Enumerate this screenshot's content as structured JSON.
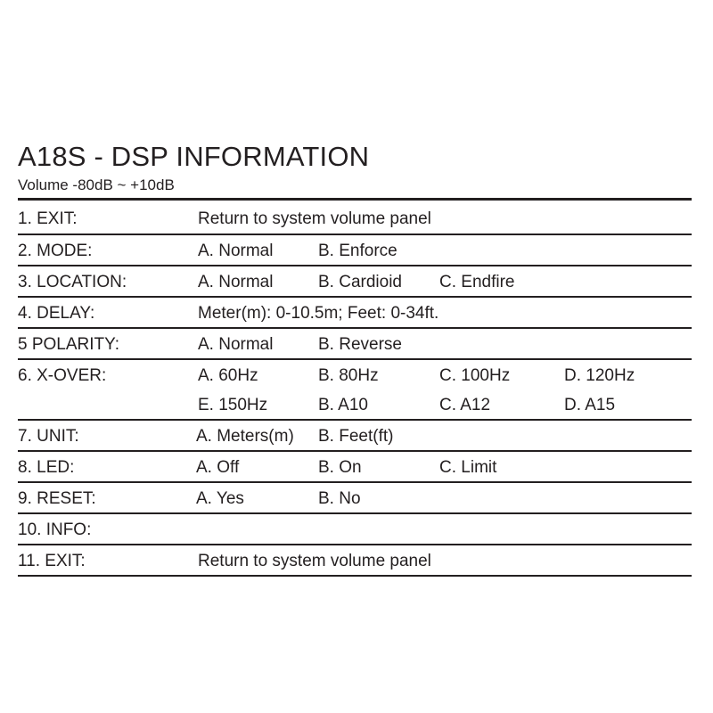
{
  "title": "A18S - DSP INFORMATION",
  "subtitle": "Volume  -80dB ~ +10dB",
  "rows": [
    {
      "label": "1.  EXIT:",
      "lines": [
        [
          "Return to system volume panel"
        ]
      ]
    },
    {
      "label": "2.  MODE:",
      "lines": [
        [
          "A. Normal",
          "B. Enforce"
        ]
      ]
    },
    {
      "label": "3. LOCATION:",
      "lines": [
        [
          "A. Normal",
          "B. Cardioid",
          "C. Endfire"
        ]
      ]
    },
    {
      "label": "4. DELAY:",
      "lines": [
        [
          "Meter(m): 0-10.5m; Feet: 0-34ft."
        ]
      ]
    },
    {
      "label": "5  POLARITY:",
      "lines": [
        [
          "A. Normal",
          "B. Reverse"
        ]
      ]
    },
    {
      "label": "6. X-OVER:",
      "lines": [
        [
          "A. 60Hz",
          "B. 80Hz",
          "C. 100Hz",
          "D. 120Hz"
        ],
        [
          "E. 150Hz",
          "B. A10",
          "C. A12",
          "D. A15"
        ]
      ]
    },
    {
      "label": "7. UNIT:",
      "lines": [
        [
          "A. Meters(m)",
          "B. Feet(ft)"
        ]
      ]
    },
    {
      "label": "8. LED:",
      "lines": [
        [
          "A. Off",
          "B. On",
          "C. Limit"
        ]
      ]
    },
    {
      "label": "9. RESET:",
      "lines": [
        [
          "A. Yes",
          "B. No"
        ]
      ]
    },
    {
      "label": "10. INFO:",
      "lines": [
        []
      ]
    },
    {
      "label": "11. EXIT:",
      "lines": [
        [
          "Return to system volume panel"
        ]
      ]
    }
  ]
}
